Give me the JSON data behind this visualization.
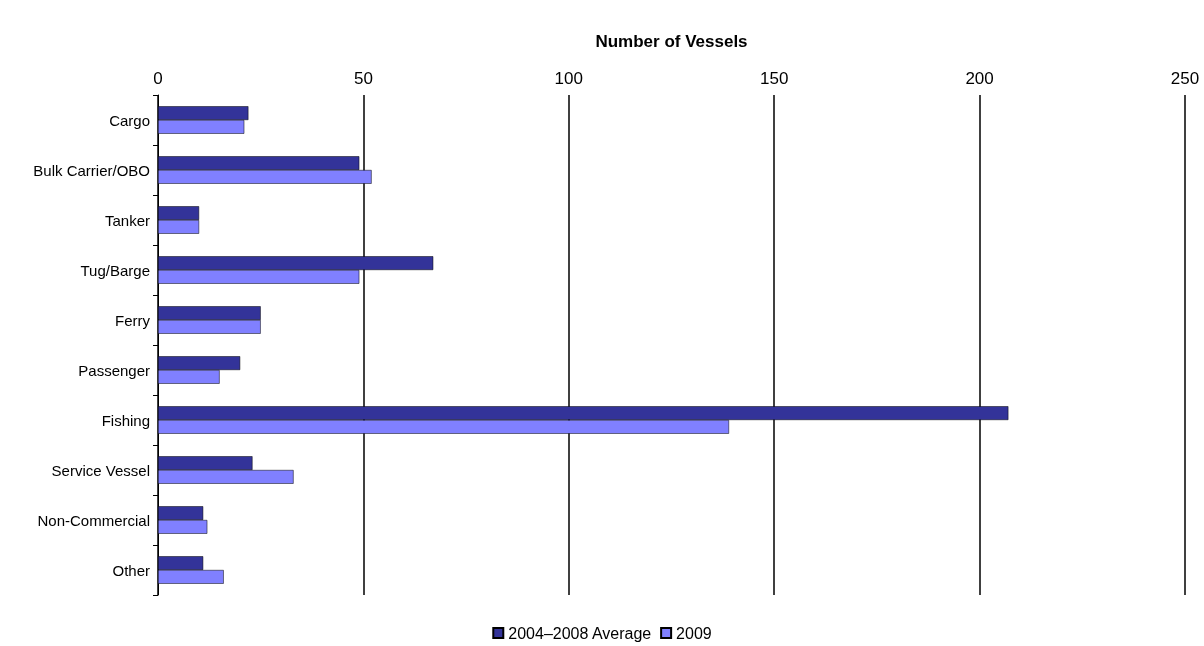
{
  "chart_data": {
    "type": "bar",
    "orientation": "horizontal",
    "xlabel": "Number of Vessels",
    "categories": [
      "Cargo",
      "Bulk Carrier/OBO",
      "Tanker",
      "Tug/Barge",
      "Ferry",
      "Passenger",
      "Fishing",
      "Service Vessel",
      "Non-Commercial",
      "Other"
    ],
    "series": [
      {
        "name": "2004–2008 Average",
        "color": "#333399",
        "values": [
          22,
          49,
          10,
          67,
          25,
          20,
          207,
          23,
          11,
          11
        ]
      },
      {
        "name": "2009",
        "color": "#8080ff",
        "values": [
          21,
          52,
          10,
          49,
          25,
          15,
          139,
          33,
          12,
          16
        ]
      }
    ],
    "xlim": [
      0,
      250
    ],
    "xticks": [
      0,
      50,
      100,
      150,
      200,
      250
    ],
    "grid": "x",
    "legend": "bottom"
  }
}
